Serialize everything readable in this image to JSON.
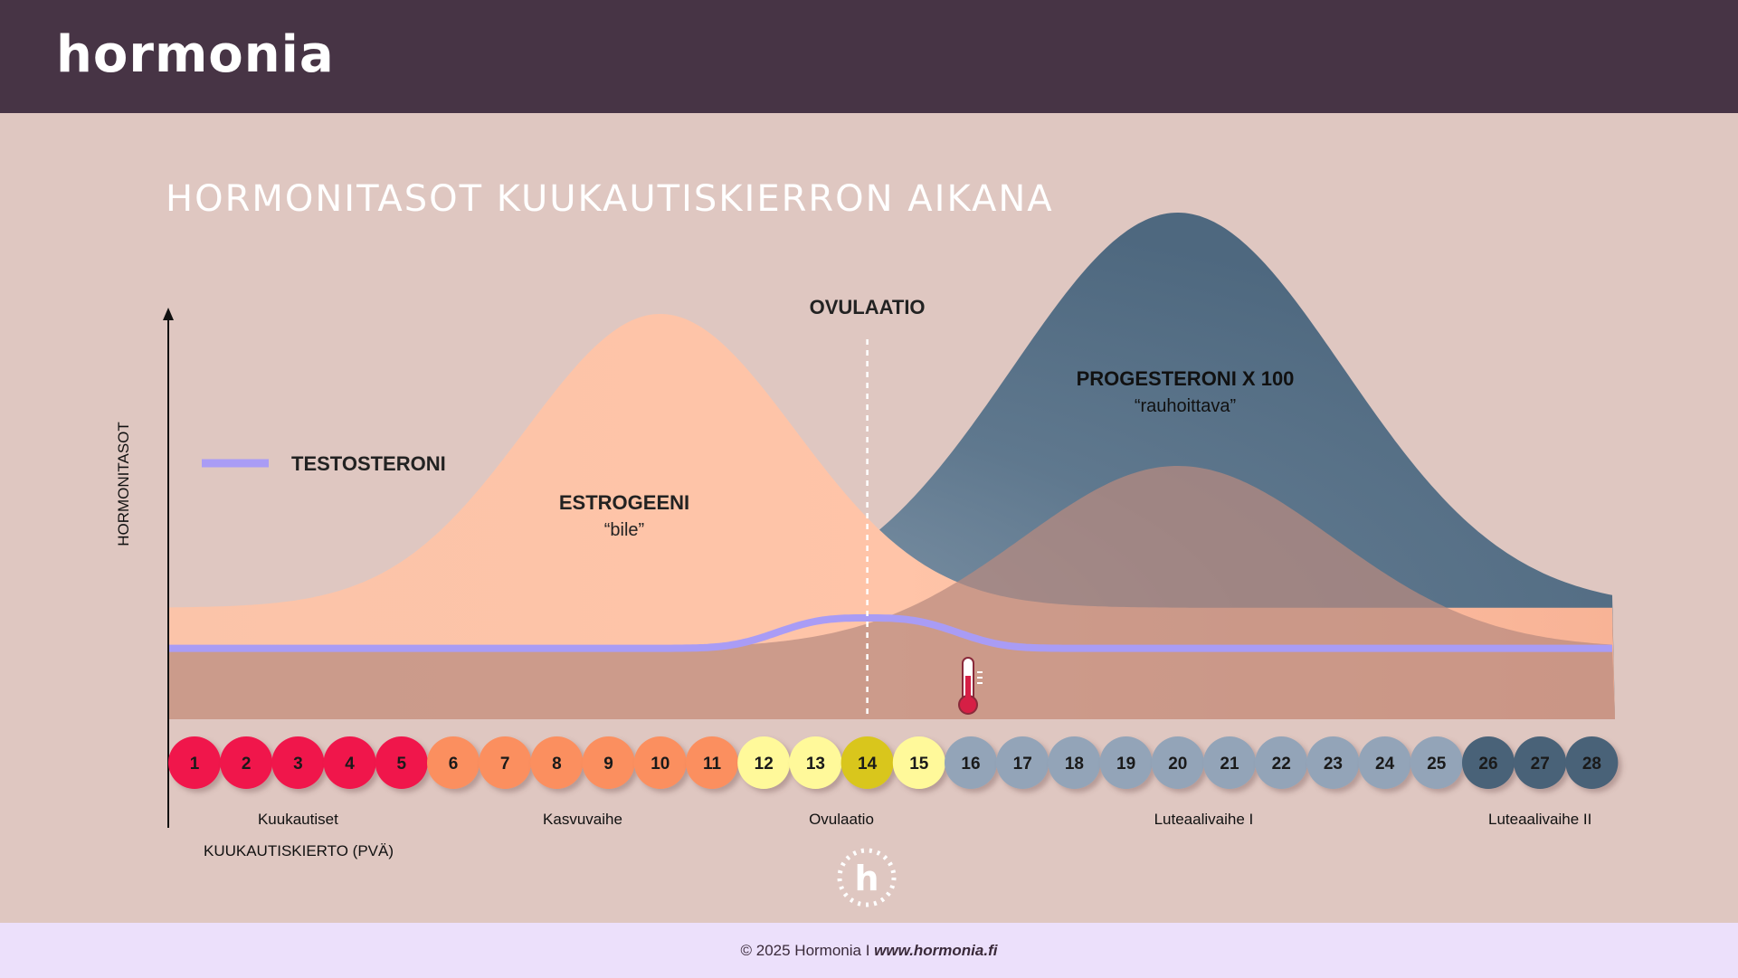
{
  "brand": {
    "logo": "hormonia"
  },
  "footer": {
    "copyright": "© 2025 Hormonia I ",
    "url": "www.hormonia.fi"
  },
  "colors": {
    "header": "#473445",
    "background": "#dfc7c1",
    "footer": "#ece0fb",
    "estrogen": "#ffbfa4",
    "progesterone": "#58728a",
    "testosterone": "#a99cf5",
    "menstruation": "#f0184c",
    "follicular": "#fb8f5e",
    "ovulation": "#fff99a",
    "ovulation_peak": "#d9c61c",
    "luteal1": "#93a4b8",
    "luteal2": "#4a6278"
  },
  "chart_data": {
    "type": "area",
    "title": "HORMONITASOT KUUKAUTISKIERRON AIKANA",
    "ylabel": "HORMONITASOT",
    "xlabel": "KUUKAUTISKIERTO (PVÄ)",
    "x": [
      1,
      2,
      3,
      4,
      5,
      6,
      7,
      8,
      9,
      10,
      11,
      12,
      13,
      14,
      15,
      16,
      17,
      18,
      19,
      20,
      21,
      22,
      23,
      24,
      25,
      26,
      27,
      28
    ],
    "ylim": [
      0,
      100
    ],
    "series": [
      {
        "name": "ESTROGEENI",
        "subtitle": "“bile”",
        "peak_day": 10,
        "peak_value": 80,
        "baseline": 22,
        "width": 2.6
      },
      {
        "name": "PROGESTERONI X 100",
        "subtitle": "“rauhoittava”",
        "peak_day": 20,
        "peak_value": 100,
        "baseline": 22,
        "width": 3.2
      },
      {
        "name": "",
        "peak_day": 20,
        "peak_value": 50,
        "baseline": 14,
        "width": 3.0
      },
      {
        "name": "TESTOSTERONI",
        "baseline": 14,
        "peak_day": 14,
        "peak_value": 20
      }
    ],
    "annotations": [
      {
        "text": "OVULAATIO",
        "day": 14
      }
    ],
    "phases": [
      {
        "label": "Kuukautiset",
        "days": [
          1,
          2,
          3,
          4,
          5
        ],
        "color_key": "menstruation"
      },
      {
        "label": "Kasvuvaihe",
        "days": [
          6,
          7,
          8,
          9,
          10,
          11
        ],
        "color_key": "follicular"
      },
      {
        "label": "Ovulaatio",
        "days": [
          12,
          13,
          14,
          15
        ],
        "color_key": "ovulation"
      },
      {
        "label": "Luteaalivaihe I",
        "days": [
          16,
          17,
          18,
          19,
          20,
          21,
          22,
          23,
          24,
          25
        ],
        "color_key": "luteal1"
      },
      {
        "label": "Luteaalivaihe II",
        "days": [
          26,
          27,
          28
        ],
        "color_key": "luteal2"
      }
    ],
    "highlight_day": 14,
    "legend_position": "left"
  }
}
